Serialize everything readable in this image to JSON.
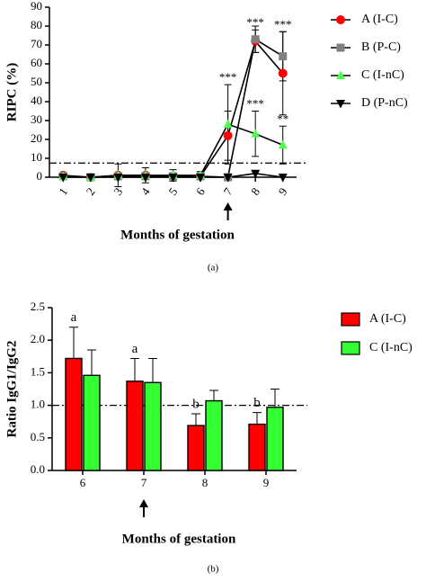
{
  "chart_data": [
    {
      "type": "line",
      "x_label": "Months of gestation",
      "y_label": "RIPC (%)",
      "caption": "(a)",
      "categories": [
        "1",
        "2",
        "3",
        "4",
        "5",
        "6",
        "7",
        "8",
        "9"
      ],
      "ylim": [
        0,
        90
      ],
      "yticks": [
        0,
        10,
        20,
        30,
        40,
        50,
        60,
        70,
        80,
        90
      ],
      "threshold": 7.5,
      "line_color": "#000000",
      "series": [
        {
          "name": "A (I-C)",
          "color": "#ff0000",
          "marker": "circle",
          "values": [
            1,
            0,
            1,
            1,
            0.5,
            0.5,
            22,
            72,
            55
          ],
          "errors": [
            1,
            0,
            1,
            1,
            1,
            1,
            13,
            6,
            22
          ],
          "annotations": [
            null,
            null,
            null,
            null,
            null,
            null,
            null,
            "***",
            "***"
          ]
        },
        {
          "name": "B (P-C)",
          "color": "#808080",
          "marker": "square",
          "values": [
            0.5,
            0,
            0.5,
            0.5,
            0.5,
            0.5,
            0,
            73,
            64
          ],
          "errors": [
            0.5,
            0,
            0.5,
            0.5,
            0.5,
            0.5,
            0,
            7,
            13
          ],
          "annotations": [
            null,
            null,
            null,
            null,
            null,
            null,
            null,
            null,
            null
          ]
        },
        {
          "name": "C (I-nC)",
          "color": "#4cff4c",
          "marker": "triangle",
          "values": [
            0.5,
            0,
            1,
            1,
            1,
            1,
            28,
            23,
            17
          ],
          "errors": [
            1,
            0,
            6,
            4,
            3,
            2,
            21,
            12,
            10
          ],
          "annotations": [
            null,
            null,
            null,
            null,
            null,
            null,
            "***",
            "***",
            "**"
          ]
        },
        {
          "name": "D (P-nC)",
          "color": "#000000",
          "marker": "triangle-down",
          "values": [
            0,
            0,
            0,
            0,
            0,
            0,
            0,
            2,
            0
          ],
          "errors": [
            0,
            0,
            0,
            0,
            0,
            0,
            0,
            0,
            0
          ],
          "annotations": [
            null,
            null,
            null,
            null,
            null,
            null,
            null,
            null,
            null
          ]
        }
      ]
    },
    {
      "type": "bar",
      "x_label": "Months of gestation",
      "y_label": "Ratio IgG1/IgG2",
      "caption": "(b)",
      "categories": [
        "6",
        "7",
        "8",
        "9"
      ],
      "ylim": [
        0,
        2.5
      ],
      "yticks": [
        {
          "value": 0,
          "label": "0.0"
        },
        {
          "value": 0.5,
          "label": "0.5"
        },
        {
          "value": 1,
          "label": "1.0"
        },
        {
          "value": 1.5,
          "label": "1.5"
        },
        {
          "value": 2,
          "label": "2.0"
        },
        {
          "value": 2.5,
          "label": "2.5"
        }
      ],
      "threshold": 1.0,
      "series": [
        {
          "name": "A (I-C)",
          "color": "#ff0000",
          "values": [
            1.72,
            1.37,
            0.69,
            0.71
          ],
          "errors": [
            0.48,
            0.35,
            0.18,
            0.18
          ],
          "annotations": [
            "a",
            "a",
            "b",
            "b"
          ]
        },
        {
          "name": "C (I-nC)",
          "color": "#33ff33",
          "values": [
            1.46,
            1.35,
            1.07,
            0.97
          ],
          "errors": [
            0.39,
            0.37,
            0.16,
            0.28
          ],
          "annotations": [
            null,
            null,
            null,
            null
          ]
        }
      ]
    }
  ]
}
